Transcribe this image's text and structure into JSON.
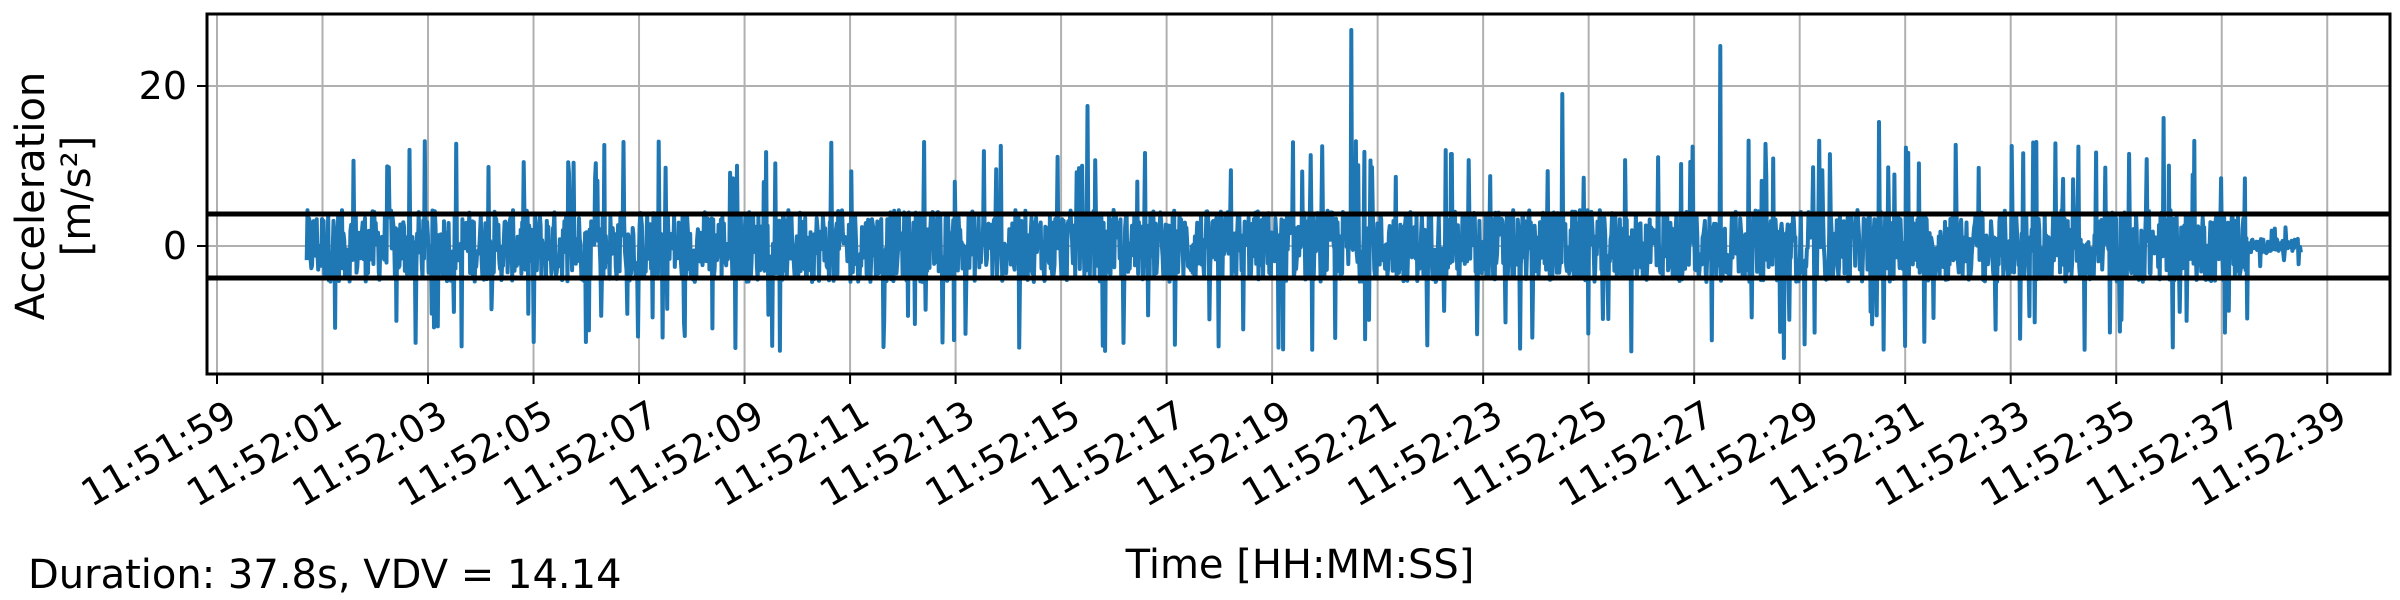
{
  "chart_data": {
    "type": "line",
    "xlabel": "Time [HH:MM:SS]",
    "ylabel_line1": "Acceleration",
    "ylabel_line2": "[m/s²]",
    "x_ticks": [
      "11:51:59",
      "11:52:01",
      "11:52:03",
      "11:52:05",
      "11:52:07",
      "11:52:09",
      "11:52:11",
      "11:52:13",
      "11:52:15",
      "11:52:17",
      "11:52:19",
      "11:52:21",
      "11:52:23",
      "11:52:25",
      "11:52:27",
      "11:52:29",
      "11:52:31",
      "11:52:33",
      "11:52:35",
      "11:52:37",
      "11:52:39"
    ],
    "y_ticks": [
      0,
      20
    ],
    "xlim": [
      "11:51:59",
      "11:52:40"
    ],
    "ylim": [
      -16,
      29
    ],
    "grid": true,
    "series_color": "#1f77b4",
    "reference_lines": {
      "color": "#000000",
      "values": [
        4.0,
        -4.0
      ]
    },
    "series": [
      {
        "x_start": "11:52:00.7",
        "x_end": "11:52:38.5",
        "envelope_typical": [
          -6,
          6
        ],
        "peaks": [
          {
            "x": "11:52:20.5",
            "y": 27.0
          },
          {
            "x": "11:52:27.5",
            "y": 25.0
          },
          {
            "x": "11:52:24.5",
            "y": 19.0
          },
          {
            "x": "11:52:15.5",
            "y": 17.5
          },
          {
            "x": "11:52:30.5",
            "y": 15.5
          },
          {
            "x": "11:52:35.9",
            "y": 16.0
          },
          {
            "x": "11:52:06.7",
            "y": 13.0
          },
          {
            "x": "11:52:12.4",
            "y": 13.0
          },
          {
            "x": "11:52:22.4",
            "y": 11.5
          },
          {
            "x": "11:52:28.7",
            "y": -14.0
          },
          {
            "x": "11:52:31.0",
            "y": -12.5
          },
          {
            "x": "11:52:20.2",
            "y": -11.5
          },
          {
            "x": "11:52:05.0",
            "y": -12.0
          }
        ]
      }
    ]
  },
  "footer": {
    "summary": "Duration: 37.8s, VDV = 14.14"
  }
}
